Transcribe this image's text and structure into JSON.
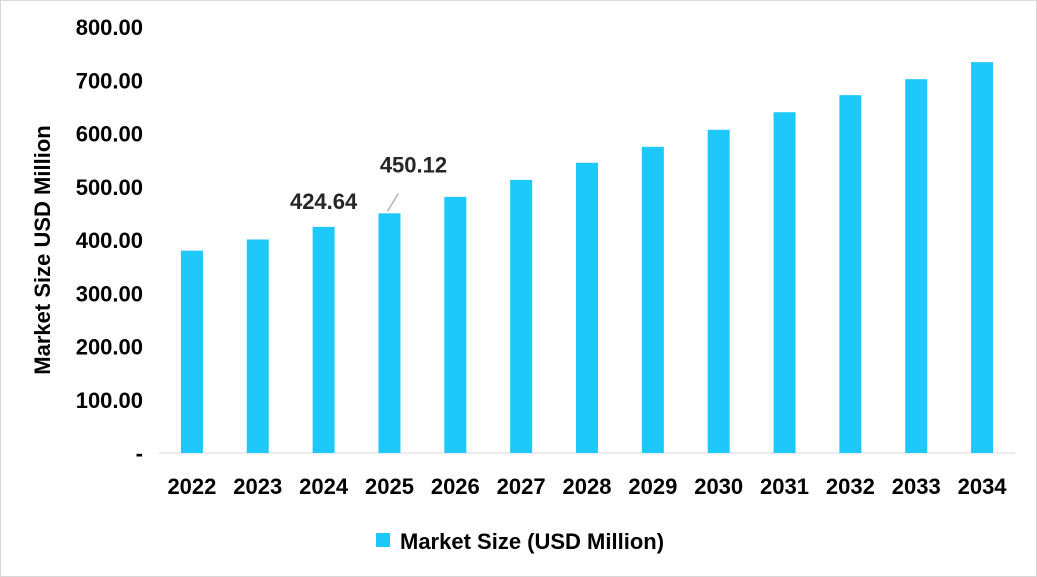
{
  "chart_data": {
    "type": "bar",
    "title": "",
    "xlabel": "",
    "ylabel": "Market Size USD Million",
    "ylim": [
      0,
      800
    ],
    "yticks": [
      0,
      100,
      200,
      300,
      400,
      500,
      600,
      700,
      800
    ],
    "ytick_labels": [
      "-",
      "100.00",
      "200.00",
      "300.00",
      "400.00",
      "500.00",
      "600.00",
      "700.00",
      "800.00"
    ],
    "categories": [
      "2022",
      "2023",
      "2024",
      "2025",
      "2026",
      "2027",
      "2028",
      "2029",
      "2030",
      "2031",
      "2032",
      "2033",
      "2034"
    ],
    "series": [
      {
        "name": "Market Size (USD Million)",
        "color": "#1ec8fa",
        "values": [
          380,
          401,
          424.64,
          450.12,
          481,
          513,
          545,
          575,
          607,
          640,
          672,
          702,
          734
        ]
      }
    ],
    "data_labels": [
      {
        "category": "2024",
        "text": "424.64"
      },
      {
        "category": "2025",
        "text": "450.12"
      }
    ],
    "grid": false,
    "legend_position": "bottom"
  }
}
